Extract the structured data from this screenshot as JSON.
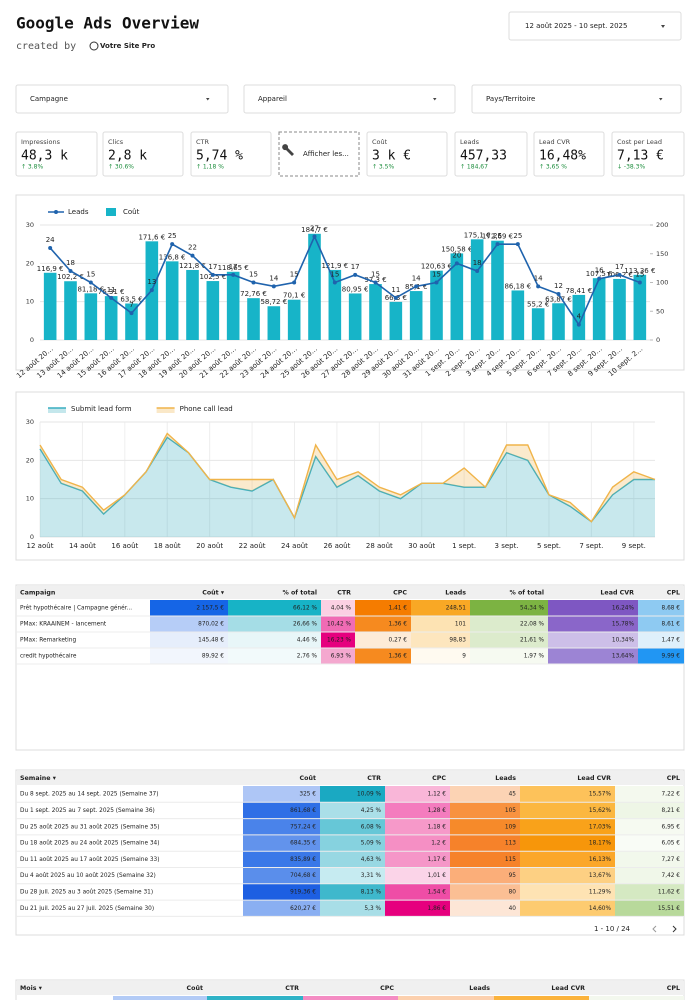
{
  "header": {
    "title": "Google Ads Overview",
    "created_by": "created by",
    "logo": "Votre Site Pro",
    "date_range": "12 août 2025 - 10 sept. 2025"
  },
  "filters": [
    "Campagne",
    "Appareil",
    "Pays/Territoire"
  ],
  "scorecards": [
    {
      "label": "Impressions",
      "value": "48,3 k",
      "delta": "↑ 3.8%"
    },
    {
      "label": "Clics",
      "value": "2,8 k",
      "delta": "↑ 30.6%"
    },
    {
      "label": "CTR",
      "value": "5,74 %",
      "delta": "↑ 1,18 %"
    },
    {
      "label": "Coût",
      "value": "3 k €",
      "delta": "↑ 3.5%"
    },
    {
      "label": "Leads",
      "value": "457,33",
      "delta": "↑ 184,67"
    },
    {
      "label": "Lead CVR",
      "value": "16,48%",
      "delta": "↑ 3,65 %"
    },
    {
      "label": "Cost per Lead",
      "value": "7,13 €",
      "delta": "↓ -38.3%"
    }
  ],
  "button_label": "Afficher les...",
  "chart_data": [
    {
      "type": "combo",
      "legend_position": "top-left",
      "grid": true,
      "categories": [
        "12 août 20…",
        "13 août 20…",
        "14 août 20…",
        "15 août 20…",
        "16 août 20…",
        "17 août 20…",
        "18 août 20…",
        "19 août 20…",
        "20 août 20…",
        "21 août 20…",
        "22 août 20…",
        "23 août 20…",
        "24 août 20…",
        "25 août 20…",
        "26 août 20…",
        "27 août 20…",
        "28 août 20…",
        "29 août 20…",
        "30 août 20…",
        "31 août 20…",
        "1 sept. 20…",
        "2 sept. 20…",
        "3 sept. 20…",
        "4 sept. 20…",
        "5 sept. 20…",
        "6 sept. 20…",
        "7 sept. 20…",
        "8 sept. 20…",
        "9 sept. 20…",
        "10 sept. 2…"
      ],
      "series": [
        {
          "name": "Leads",
          "type": "line",
          "color": "#1f63ad",
          "values": [
            24,
            18,
            15,
            11,
            7,
            13,
            25,
            22,
            17,
            17,
            15,
            14,
            15,
            27,
            15,
            17,
            15,
            11,
            14,
            15,
            20,
            18,
            25,
            25,
            14,
            12,
            4,
            16,
            17,
            15
          ]
        },
        {
          "name": "Coût",
          "type": "bar",
          "axis": "y2",
          "color": "#17b4c8",
          "values": [
            116.9,
            102.2,
            81.18,
            76.31,
            63.5,
            171.6,
            136.8,
            121.8,
            102.5,
            118.65,
            72.76,
            58.72,
            70.1,
            184.7,
            121.9,
            80.95,
            97.3,
            66.3,
            85.1,
            120.63,
            150.58,
            175.1,
            172.69,
            86.18,
            55.2,
            63.87,
            78.41,
            107.5,
            106.2,
            113.36
          ],
          "value_labels": [
            "116,9 €",
            "102,2 €",
            "81,18 €",
            "76,31 €",
            "63,5 €",
            "171,6 €",
            "136,8 €",
            "121,8 €",
            "102,5 €",
            "118,65 €",
            "72,76 €",
            "58,72 €",
            "70,1 €",
            "184,7 €",
            "121,9 €",
            "80,95 €",
            "97,3 €",
            "66,3 €",
            "85,1 €",
            "120,63 €",
            "150,58 €",
            "175,1 €",
            "172,69 €",
            "86,18 €",
            "55,2 €",
            "63,87 €",
            "78,41 €",
            "107,5 €",
            "106,2 €",
            "113,36 €"
          ]
        }
      ],
      "ylim": [
        0,
        30
      ],
      "yticks": [
        0,
        10,
        20,
        30
      ],
      "y2lim": [
        0,
        200
      ],
      "y2ticks": [
        0,
        50,
        100,
        150,
        200
      ]
    },
    {
      "type": "stacked_area",
      "legend_position": "top-left",
      "grid": true,
      "categories": [
        "12 août",
        null,
        "14 août",
        null,
        "16 août",
        null,
        "18 août",
        null,
        "20 août",
        null,
        "22 août",
        null,
        "24 août",
        null,
        "26 août",
        null,
        "28 août",
        null,
        "30 août",
        null,
        "1 sept.",
        null,
        "3 sept.",
        null,
        "5 sept.",
        null,
        "7 sept.",
        null,
        "9 sept.",
        null
      ],
      "series": [
        {
          "name": "Submit lead form",
          "color": "#3aaec0",
          "values": [
            23,
            14,
            12,
            6,
            11,
            17,
            26,
            22,
            15,
            13,
            12,
            15,
            5,
            21,
            13,
            16,
            12,
            10,
            14,
            14,
            13,
            13,
            22,
            20,
            11,
            8,
            4,
            11,
            15,
            15
          ]
        },
        {
          "name": "Phone call lead",
          "color": "#f0b44a",
          "values": [
            1,
            1,
            1,
            1,
            0,
            0,
            1,
            0,
            0,
            2,
            3,
            0,
            0,
            3,
            2,
            1,
            1,
            1,
            0,
            0,
            5,
            0,
            2,
            4,
            0,
            1,
            0,
            2,
            2,
            0
          ]
        }
      ],
      "ylim": [
        0,
        30
      ],
      "yticks": [
        0,
        10,
        20,
        30
      ]
    }
  ],
  "tables": [
    {
      "columns": [
        "Campaign",
        "Coût ▾",
        "% of total",
        "CTR",
        "CPC",
        "Leads",
        "% of total",
        "Lead CVR",
        "CPL"
      ],
      "rows": [
        [
          "Prêt hypothécaire | Campagne génér...",
          "2 157,5 €",
          "66,12 %",
          "4,04 %",
          "1,41 €",
          "248,51",
          "54,34 %",
          "16,24%",
          "8,68 €"
        ],
        [
          "PMax: KRAAINEM - lancement",
          "870,02 €",
          "26,66 %",
          "10,42 %",
          "1,36 €",
          "101",
          "22,08 %",
          "15,78%",
          "8,61 €"
        ],
        [
          "PMax: Remarketing",
          "145,48 €",
          "4,46 %",
          "16,23 %",
          "0,27 €",
          "98,83",
          "21,61 %",
          "10,34%",
          "1,47 €"
        ],
        [
          "credit hypothécaire",
          "89,92 €",
          "2,76 %",
          "6,93 %",
          "1,36 €",
          "9",
          "1,97 %",
          "13,64%",
          "9,99 €"
        ]
      ],
      "cell_colors": [
        [
          "#ffffff",
          "#1565e6",
          "#17b3c6",
          "#fbd0e3",
          "#f57c00",
          "#f9a825",
          "#7cb342",
          "#7e57c2",
          "#8ecaf2"
        ],
        [
          "#ffffff",
          "#b6cdf7",
          "#a5dde6",
          "#f06bb4",
          "#f68a1f",
          "#fde3b3",
          "#dcebcc",
          "#8a66c9",
          "#8ecaf2"
        ],
        [
          "#ffffff",
          "#e6eefb",
          "#e8f6f8",
          "#e6007e",
          "#fdebd7",
          "#fde6be",
          "#dcebcc",
          "#cdbfe8",
          "#dff0fb"
        ],
        [
          "#ffffff",
          "#f2f6fd",
          "#f2fafb",
          "#f4a8cf",
          "#f68a1f",
          "#fffaf0",
          "#f6faf1",
          "#9c84d4",
          "#2196f3"
        ]
      ]
    },
    {
      "columns": [
        "Semaine ▾",
        "Coût",
        "CTR",
        "CPC",
        "Leads",
        "Lead CVR",
        "CPL"
      ],
      "rows": [
        [
          "Du 8 sept. 2025 au 14 sept. 2025 (Semaine 37)",
          "325 €",
          "10,09 %",
          "1,12 €",
          "45",
          "15,57%",
          "7,22 €"
        ],
        [
          "Du 1 sept. 2025 au 7 sept. 2025 (Semaine 36)",
          "861,68 €",
          "4,25 %",
          "1,28 €",
          "105",
          "15,62%",
          "8,21 €"
        ],
        [
          "Du 25 août 2025 au 31 août 2025 (Semaine 35)",
          "757,24 €",
          "6,08 %",
          "1,18 €",
          "109",
          "17,03%",
          "6,95 €"
        ],
        [
          "Du 18 août 2025 au 24 août 2025 (Semaine 34)",
          "684,35 €",
          "5,09 %",
          "1,2 €",
          "113",
          "18,17%",
          "6,05 €"
        ],
        [
          "Du 11 août 2025 au 17 août 2025 (Semaine 33)",
          "835,89 €",
          "4,63 %",
          "1,17 €",
          "115",
          "16,13%",
          "7,27 €"
        ],
        [
          "Du 4 août 2025 au 10 août 2025 (Semaine 32)",
          "704,68 €",
          "3,31 %",
          "1,01 €",
          "95",
          "13,67%",
          "7,42 €"
        ],
        [
          "Du 28 juil. 2025 au 3 août 2025 (Semaine 31)",
          "919,36 €",
          "8,13 %",
          "1,54 €",
          "80",
          "11,29%",
          "11,62 €"
        ],
        [
          "Du 21 juil. 2025 au 27 juil. 2025 (Semaine 30)",
          "620,27 €",
          "5,3 %",
          "1,86 €",
          "40",
          "14,60%",
          "15,51 €"
        ]
      ],
      "cell_colors": [
        [
          "#ffffff",
          "#aec6f6",
          "#1aa9c2",
          "#f9b6d8",
          "#fcd3b4",
          "#fdc25a",
          "#f4f9ee"
        ],
        [
          "#ffffff",
          "#2f6fe6",
          "#aadfe8",
          "#f47cbe",
          "#f8923f",
          "#fbb740",
          "#eef6e6"
        ],
        [
          "#ffffff",
          "#4a83ea",
          "#66c7d7",
          "#f699c9",
          "#f68a2a",
          "#f9a21a",
          "#f6faf1"
        ],
        [
          "#ffffff",
          "#6293ec",
          "#86d2df",
          "#f58fc4",
          "#f6822a",
          "#f7960a",
          "#f9fcf6"
        ],
        [
          "#ffffff",
          "#3a78e8",
          "#98d8e3",
          "#f596c8",
          "#f6822a",
          "#fba72a",
          "#f2f8ec"
        ],
        [
          "#ffffff",
          "#5a8eeb",
          "#c6ebf1",
          "#fbd4e8",
          "#fbae79",
          "#fdd083",
          "#f0f7e9"
        ],
        [
          "#ffffff",
          "#1d5fe2",
          "#3fb8cc",
          "#ef4da6",
          "#fbbf94",
          "#fee3b3",
          "#d5e9c2"
        ],
        [
          "#ffffff",
          "#8aaff2",
          "#a8dee7",
          "#e6007e",
          "#fde6d6",
          "#fdcb70",
          "#b8d99b"
        ]
      ],
      "pagination": "1 - 10 / 24"
    },
    {
      "columns": [
        "Mois ▾",
        "Coût",
        "CTR",
        "CPC",
        "Leads",
        "Lead CVR",
        "CPL"
      ],
      "cell_colors": [
        [
          "#ffffff",
          "#b3cbf6",
          "#2fb3c7",
          "#f48cc3",
          "#fcd0ae",
          "#fbb33c",
          "#f3f8ee"
        ]
      ]
    }
  ]
}
